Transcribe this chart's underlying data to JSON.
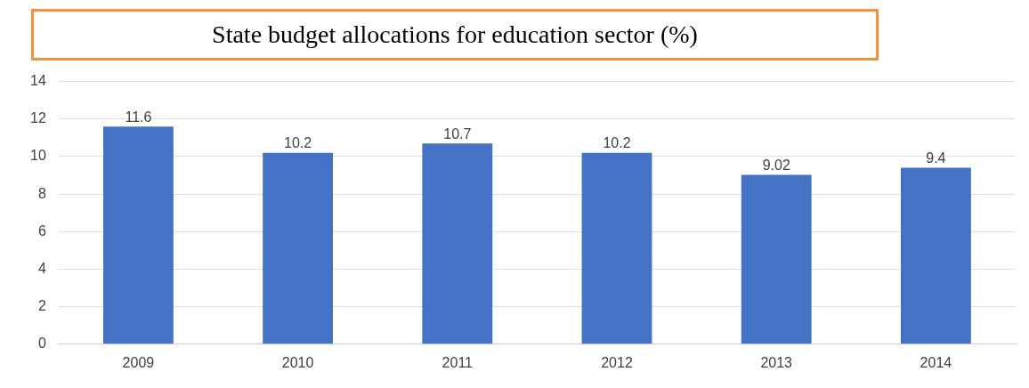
{
  "chart_data": {
    "type": "bar",
    "title": "State budget allocations for education sector (%)",
    "categories": [
      "2009",
      "2010",
      "2011",
      "2012",
      "2013",
      "2014"
    ],
    "values": [
      11.6,
      10.2,
      10.7,
      10.2,
      9.02,
      9.4
    ],
    "color": "#4472c4",
    "ylim": [
      0,
      14
    ],
    "yticks": [
      0,
      2,
      4,
      6,
      8,
      10,
      12,
      14
    ],
    "grid": "y",
    "legend": false,
    "data_labels": true
  }
}
